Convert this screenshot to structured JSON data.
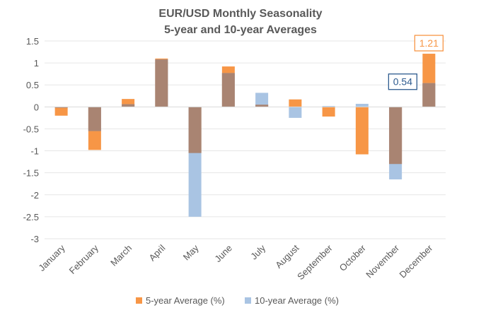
{
  "chart_data": {
    "type": "bar",
    "title": "EUR/USD Monthly Seasonality",
    "subtitle": "5-year and 10-year Averages",
    "categories": [
      "January",
      "February",
      "March",
      "April",
      "May",
      "June",
      "July",
      "August",
      "September",
      "October",
      "November",
      "December"
    ],
    "series": [
      {
        "name": "5-year Average (%)",
        "color": "#f79646",
        "values": [
          -0.2,
          -0.98,
          0.18,
          1.1,
          -1.05,
          0.92,
          0.05,
          0.17,
          -0.22,
          -1.08,
          -1.3,
          1.21
        ]
      },
      {
        "name": "10-year Average (%)",
        "color": "#a9c4e3",
        "values": [
          -0.02,
          -0.55,
          0.06,
          1.08,
          -2.5,
          0.77,
          0.32,
          -0.25,
          0.02,
          0.07,
          -1.65,
          0.54
        ]
      }
    ],
    "overlap_color": "#a98472",
    "ylim": [
      -3,
      1.5
    ],
    "yticks": [
      1.5,
      1,
      0.5,
      0,
      -0.5,
      -1,
      -1.5,
      -2,
      -2.5,
      -3
    ],
    "legend_position": "bottom",
    "callouts": [
      {
        "text": "1.21",
        "series": 0,
        "category": "December",
        "color": "#f79646"
      },
      {
        "text": "0.54",
        "series": 1,
        "category": "December",
        "color": "#2e5b8f"
      }
    ]
  }
}
